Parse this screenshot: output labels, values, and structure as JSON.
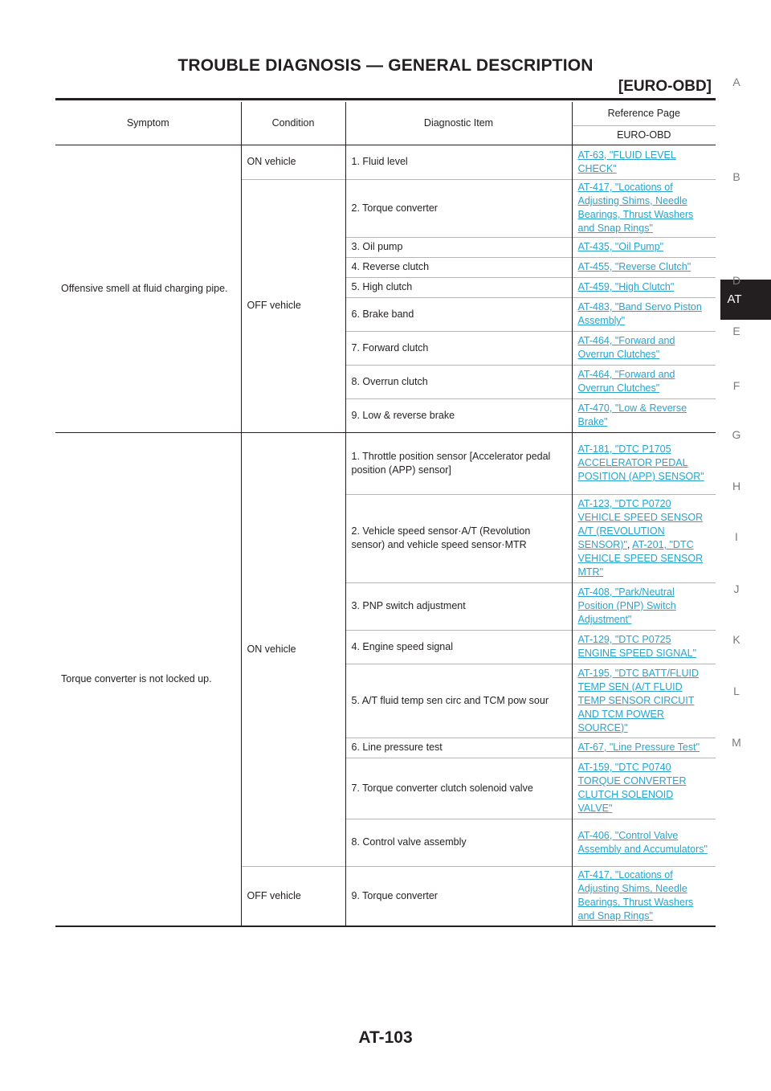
{
  "header": {
    "title": "TROUBLE DIAGNOSIS — GENERAL DESCRIPTION",
    "subtitle": "[EURO-OBD]"
  },
  "side_index": {
    "letters": [
      "A",
      "B",
      "D",
      "E",
      "F",
      "G",
      "H",
      "I",
      "J",
      "K",
      "L",
      "M"
    ],
    "active": "AT"
  },
  "table": {
    "headers": {
      "symptom": "Symptom",
      "condition": "Condition",
      "item": "Diagnostic Item",
      "reference": "Reference Page",
      "reference_sub": "EURO-OBD"
    },
    "groups": [
      {
        "symptom": "Offensive smell at fluid charging pipe.",
        "conditions": [
          {
            "condition": "ON vehicle",
            "rows": [
              {
                "item": "1. Fluid level",
                "refs": [
                  "AT-63, \"FLUID LEVEL CHECK\""
                ]
              }
            ]
          },
          {
            "condition": "OFF vehicle",
            "rows": [
              {
                "item": "2. Torque converter",
                "refs": [
                  "AT-417, \"Locations of Adjusting Shims, Needle Bearings, Thrust Washers and Snap Rings\""
                ]
              },
              {
                "item": "3. Oil pump",
                "refs": [
                  "AT-435, \"Oil Pump\""
                ]
              },
              {
                "item": "4. Reverse clutch",
                "refs": [
                  "AT-455, \"Reverse Clutch\""
                ]
              },
              {
                "item": "5. High clutch",
                "refs": [
                  "AT-459, \"High Clutch\""
                ]
              },
              {
                "item": "6. Brake band",
                "refs": [
                  "AT-483, \"Band Servo Piston Assembly\""
                ]
              },
              {
                "item": "7. Forward clutch",
                "refs": [
                  "AT-464, \"Forward and Overrun Clutches\""
                ]
              },
              {
                "item": "8. Overrun clutch",
                "refs": [
                  "AT-464, \"Forward and Overrun Clutches\""
                ]
              },
              {
                "item": "9. Low & reverse brake",
                "refs": [
                  "AT-470, \"Low & Reverse Brake\""
                ]
              }
            ]
          }
        ]
      },
      {
        "symptom": "Torque converter is not locked up.",
        "conditions": [
          {
            "condition": "ON vehicle",
            "rows": [
              {
                "item": "1. Throttle position sensor [Accelerator pedal position (APP) sensor]",
                "refs": [
                  "AT-181, \"DTC P1705 ACCELERATOR PEDAL POSITION (APP) SENSOR\""
                ]
              },
              {
                "item": "2. Vehicle speed sensor·A/T (Revolution sensor) and vehicle speed sensor·MTR",
                "refs": [
                  "AT-123, \"DTC P0720 VEHICLE SPEED SENSOR A/T (REVOLUTION SENSOR)\"",
                  "AT-201, \"DTC VEHICLE SPEED SENSOR MTR\""
                ]
              },
              {
                "item": "3. PNP switch adjustment",
                "refs": [
                  "AT-408, \"Park/Neutral Position (PNP) Switch Adjustment\""
                ]
              },
              {
                "item": "4. Engine speed signal",
                "refs": [
                  "AT-129, \"DTC P0725 ENGINE SPEED SIGNAL\""
                ]
              },
              {
                "item": "5. A/T fluid temp sen circ and TCM pow sour",
                "refs": [
                  "AT-195, \"DTC BATT/FLUID TEMP SEN (A/T FLUID TEMP SENSOR CIRCUIT AND TCM POWER SOURCE)\""
                ]
              },
              {
                "item": "6. Line pressure test",
                "refs": [
                  "AT-67, \"Line Pressure Test\""
                ]
              },
              {
                "item": "7. Torque converter clutch solenoid valve",
                "refs": [
                  "AT-159, \"DTC P0740 TORQUE CONVERTER CLUTCH SOLENOID VALVE\""
                ]
              },
              {
                "item": "8. Control valve assembly",
                "refs": [
                  "AT-406, \"Control Valve Assembly and Accumulators\""
                ]
              }
            ]
          },
          {
            "condition": "OFF vehicle",
            "rows": [
              {
                "item": "9. Torque converter",
                "refs": [
                  "AT-417, \"Locations of Adjusting Shims, Needle Bearings, Thrust Washers and Snap Rings\""
                ]
              }
            ]
          }
        ]
      }
    ]
  },
  "footer": {
    "page_number": "AT-103"
  }
}
